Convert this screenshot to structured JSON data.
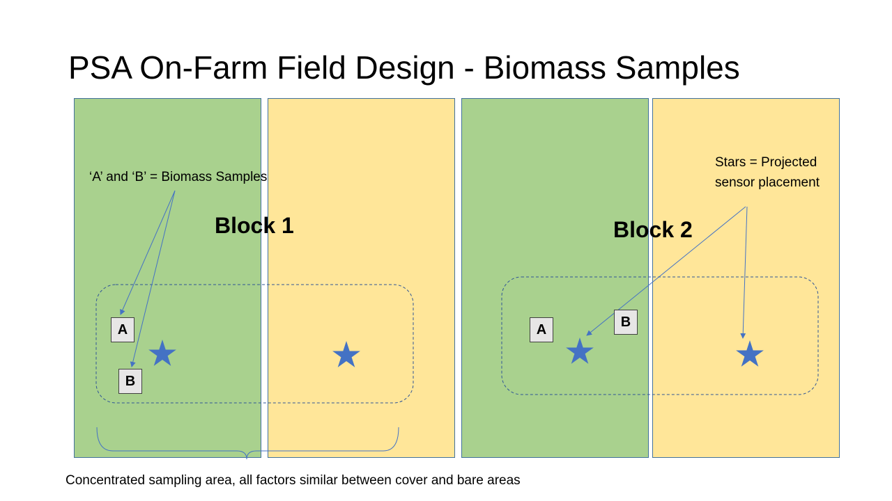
{
  "title": "PSA On-Farm Field Design - Biomass Samples",
  "colors": {
    "cover_plot": "#a9d18e",
    "bare_plot": "#ffe699",
    "star": "#4472c4",
    "arrow": "#4472c4",
    "dashed_outline": "#2f5597"
  },
  "blocks": [
    {
      "label": "Block 1"
    },
    {
      "label": "Block 2"
    }
  ],
  "notes": {
    "samples_note": "‘A’ and ‘B’ = Biomass Samples",
    "stars_note": "Stars = Projected sensor placement"
  },
  "samples": {
    "a_label": "A",
    "b_label": "B"
  },
  "caption": "Concentrated sampling area, all factors similar between cover and bare areas"
}
